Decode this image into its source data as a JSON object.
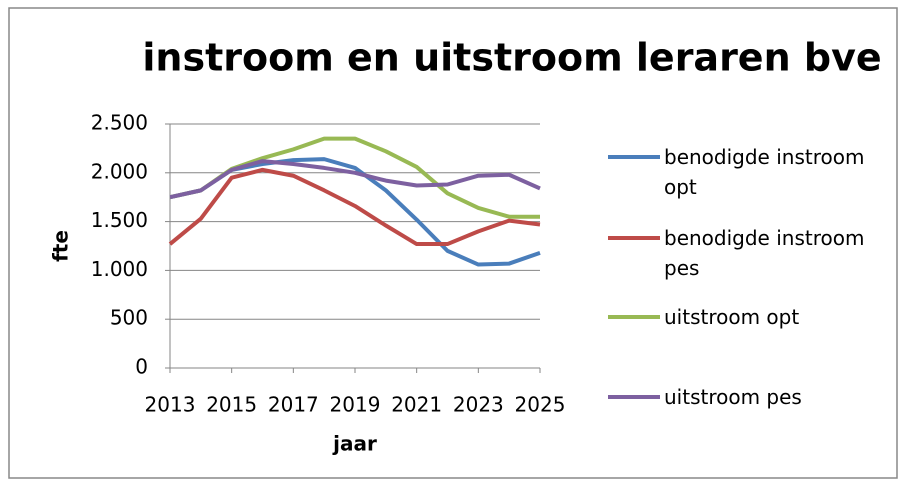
{
  "chart_data": {
    "type": "line",
    "title": "instroom en uitstroom leraren bve",
    "xlabel": "jaar",
    "ylabel": "fte",
    "x": [
      2013,
      2014,
      2015,
      2016,
      2017,
      2018,
      2019,
      2020,
      2021,
      2022,
      2023,
      2024,
      2025
    ],
    "xlim": [
      2013,
      2025
    ],
    "xticks": [
      2013,
      2015,
      2017,
      2019,
      2021,
      2023,
      2025
    ],
    "ylim": [
      0,
      2500
    ],
    "yticks": [
      0,
      500,
      {
        "value": 1000,
        "label": "1.000"
      },
      {
        "value": 1500,
        "label": "1.500"
      },
      {
        "value": 2000,
        "label": "2.000"
      },
      {
        "value": 2500,
        "label": "2.500"
      }
    ],
    "grid": true,
    "legend": "right",
    "series": [
      {
        "name": "benodigde instroom opt",
        "color": "#4a7ebb",
        "values": [
          1750,
          1820,
          2030,
          2090,
          2130,
          2140,
          2050,
          1820,
          1520,
          1200,
          1060,
          1070,
          1180
        ]
      },
      {
        "name": "benodigde instroom pes",
        "color": "#be4b48",
        "values": [
          1270,
          1530,
          1950,
          2030,
          1970,
          1820,
          1660,
          1460,
          1270,
          1270,
          1400,
          1510,
          1470
        ]
      },
      {
        "name": "uitstroom opt",
        "color": "#98b954",
        "values": [
          1750,
          1820,
          2040,
          2150,
          2240,
          2350,
          2350,
          2220,
          2060,
          1790,
          1640,
          1550,
          1550
        ]
      },
      {
        "name": "uitstroom pes",
        "color": "#7d60a0",
        "values": [
          1750,
          1820,
          2030,
          2120,
          2090,
          2050,
          2000,
          1920,
          1870,
          1880,
          1970,
          1980,
          1840
        ]
      }
    ]
  }
}
